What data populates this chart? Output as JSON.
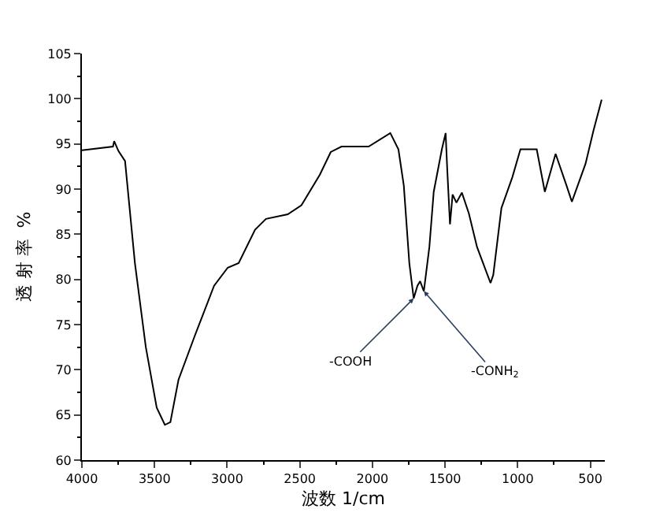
{
  "chart_data": {
    "type": "line",
    "xlabel": "波数 1/cm",
    "ylabel": "透 射 率  %",
    "x": [
      4000,
      3786,
      3778,
      3748,
      3703,
      3635,
      3560,
      3485,
      3429,
      3391,
      3335,
      3222,
      3090,
      2996,
      2921,
      2808,
      2733,
      2583,
      2489,
      2362,
      2287,
      2213,
      2026,
      1877,
      1821,
      1784,
      1746,
      1716,
      1690,
      1672,
      1646,
      1608,
      1578,
      1522,
      1496,
      1485,
      1466,
      1448,
      1422,
      1384,
      1336,
      1280,
      1187,
      1168,
      1112,
      1037,
      981,
      869,
      813,
      739,
      664,
      627,
      533,
      478,
      422
    ],
    "series": [
      {
        "color": "#000000",
        "values": [
          94.3,
          94.7,
          95.3,
          94.2,
          93.1,
          81.8,
          72.5,
          65.8,
          63.9,
          64.2,
          68.9,
          73.8,
          79.3,
          81.3,
          81.8,
          85.5,
          86.7,
          87.2,
          88.2,
          91.6,
          94.1,
          94.7,
          94.7,
          96.2,
          94.4,
          90.4,
          81.8,
          77.9,
          79.3,
          79.8,
          78.7,
          83.6,
          89.7,
          94.4,
          96.2,
          92.2,
          86.1,
          89.4,
          88.5,
          89.6,
          87.3,
          83.6,
          79.6,
          80.5,
          87.9,
          91.3,
          94.4,
          94.4,
          89.7,
          93.9,
          90.4,
          88.6,
          92.8,
          96.5,
          99.9
        ]
      }
    ],
    "xlim": [
      4000,
      400
    ],
    "xticks": [
      4000,
      3500,
      3000,
      2500,
      2000,
      1500,
      1000,
      500
    ],
    "ylim": [
      60,
      105
    ],
    "yticks": [
      60,
      65,
      70,
      75,
      80,
      85,
      90,
      95,
      100,
      105
    ],
    "marker": "none",
    "line_style": "solid",
    "annotations": [
      {
        "text": "-COOH",
        "x": 1716,
        "y": 77.9
      },
      {
        "text": "-CONH$_{2}$",
        "x": 1646,
        "y": 78.7
      }
    ]
  }
}
